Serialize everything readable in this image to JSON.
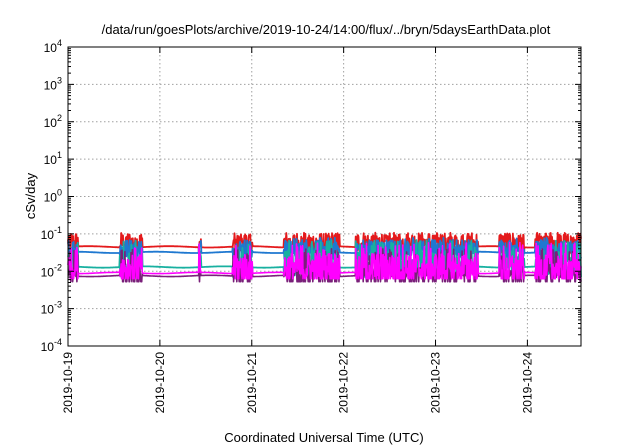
{
  "chart_data": {
    "type": "line",
    "title": "/data/run/goesPlots/archive/2019-10-24/14:00/flux/../bryn/5daysEarthData.plot",
    "xlabel": "Coordinated Universal Time (UTC)",
    "ylabel": "cSv/day",
    "yscale": "log",
    "xlim": [
      "2019-10-19",
      "2019-10-24 14:00"
    ],
    "ylim": [
      0.0001,
      10000
    ],
    "x_ticks": [
      "2019-10-19",
      "2019-10-20",
      "2019-10-21",
      "2019-10-22",
      "2019-10-23",
      "2019-10-24"
    ],
    "y_ticks": [
      {
        "base": "10",
        "exp": "-4"
      },
      {
        "base": "10",
        "exp": "-3"
      },
      {
        "base": "10",
        "exp": "-2"
      },
      {
        "base": "10",
        "exp": "-1"
      },
      {
        "base": "10",
        "exp": "0"
      },
      {
        "base": "10",
        "exp": "1"
      },
      {
        "base": "10",
        "exp": "2"
      },
      {
        "base": "10",
        "exp": "3"
      },
      {
        "base": "10",
        "exp": "4"
      }
    ],
    "grid": true,
    "legend": "none",
    "series": [
      {
        "color": "#e41a1c",
        "baseline": 0.045,
        "spike_max": 0.1,
        "noise": 0.25
      },
      {
        "color": "#1f78d0",
        "baseline": 0.032,
        "spike_max": 0.08,
        "noise": 0.22
      },
      {
        "color": "#18b0a0",
        "baseline": 0.013,
        "spike_max": 0.07,
        "noise": 0.3
      },
      {
        "color": "#7a1f7a",
        "baseline": 0.0075,
        "spike_max": 0.04,
        "noise": 0.15
      },
      {
        "color": "#ff00ff",
        "baseline": 0.009,
        "spike_max": 0.06,
        "noise": 0.35
      }
    ]
  }
}
